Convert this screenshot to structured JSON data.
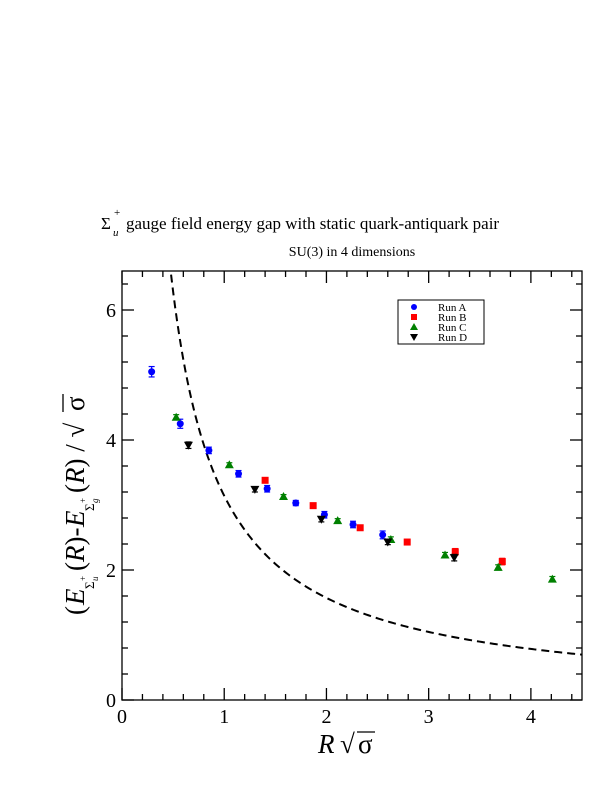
{
  "chart_data": {
    "type": "scatter",
    "title": {
      "main": "gauge field energy gap with static quark-antiquark pair",
      "symbol": "Σ",
      "symbol_sup": "+",
      "symbol_sub": "u"
    },
    "subtitle": "SU(3) in 4 dimensions",
    "xlabel": "R √σ",
    "ylabel": "(E_{Σu+}(R) - E_{Σg+}(R)) / √σ",
    "xlim": [
      0,
      4.5
    ],
    "ylim": [
      0,
      6.6
    ],
    "x_ticks": [
      "0",
      "1",
      "2",
      "3",
      "4"
    ],
    "y_ticks": [
      "0",
      "2",
      "4",
      "6"
    ],
    "legend_position": "top-right",
    "series": [
      {
        "name": "Run A",
        "marker": "circle",
        "color": "#0000ff",
        "points": [
          {
            "x": 0.29,
            "y": 5.05,
            "err": 0.08
          },
          {
            "x": 0.57,
            "y": 4.25,
            "err": 0.07
          },
          {
            "x": 0.85,
            "y": 3.84,
            "err": 0.05
          },
          {
            "x": 1.14,
            "y": 3.48,
            "err": 0.05
          },
          {
            "x": 1.42,
            "y": 3.25,
            "err": 0.05
          },
          {
            "x": 1.7,
            "y": 3.03,
            "err": 0.04
          },
          {
            "x": 1.98,
            "y": 2.85,
            "err": 0.05
          },
          {
            "x": 2.26,
            "y": 2.7,
            "err": 0.05
          },
          {
            "x": 2.55,
            "y": 2.54,
            "err": 0.06
          }
        ]
      },
      {
        "name": "Run B",
        "marker": "square",
        "color": "#ff0000",
        "points": [
          {
            "x": 1.4,
            "y": 3.38,
            "err": 0.04
          },
          {
            "x": 1.87,
            "y": 2.99,
            "err": 0.04
          },
          {
            "x": 2.33,
            "y": 2.65,
            "err": 0.04
          },
          {
            "x": 2.79,
            "y": 2.43,
            "err": 0.04
          },
          {
            "x": 3.26,
            "y": 2.28,
            "err": 0.05
          },
          {
            "x": 3.72,
            "y": 2.13,
            "err": 0.05
          }
        ]
      },
      {
        "name": "Run C",
        "marker": "triangle-up",
        "color": "#008000",
        "points": [
          {
            "x": 0.53,
            "y": 4.35,
            "err": 0.04
          },
          {
            "x": 1.05,
            "y": 3.62,
            "err": 0.03
          },
          {
            "x": 1.58,
            "y": 3.13,
            "err": 0.03
          },
          {
            "x": 2.11,
            "y": 2.76,
            "err": 0.03
          },
          {
            "x": 2.63,
            "y": 2.47,
            "err": 0.04
          },
          {
            "x": 3.16,
            "y": 2.23,
            "err": 0.04
          },
          {
            "x": 3.68,
            "y": 2.04,
            "err": 0.04
          },
          {
            "x": 4.21,
            "y": 1.86,
            "err": 0.04
          }
        ]
      },
      {
        "name": "Run D",
        "marker": "triangle-down",
        "color": "#000000",
        "points": [
          {
            "x": 0.65,
            "y": 3.92,
            "err": 0.05
          },
          {
            "x": 1.3,
            "y": 3.24,
            "err": 0.04
          },
          {
            "x": 1.95,
            "y": 2.78,
            "err": 0.04
          },
          {
            "x": 2.6,
            "y": 2.43,
            "err": 0.04
          },
          {
            "x": 3.25,
            "y": 2.19,
            "err": 0.05
          }
        ]
      }
    ],
    "curve": {
      "style": "dashed",
      "color": "#000000",
      "formula": "pi / x",
      "x_start": 0.48,
      "x_end": 4.5
    }
  }
}
